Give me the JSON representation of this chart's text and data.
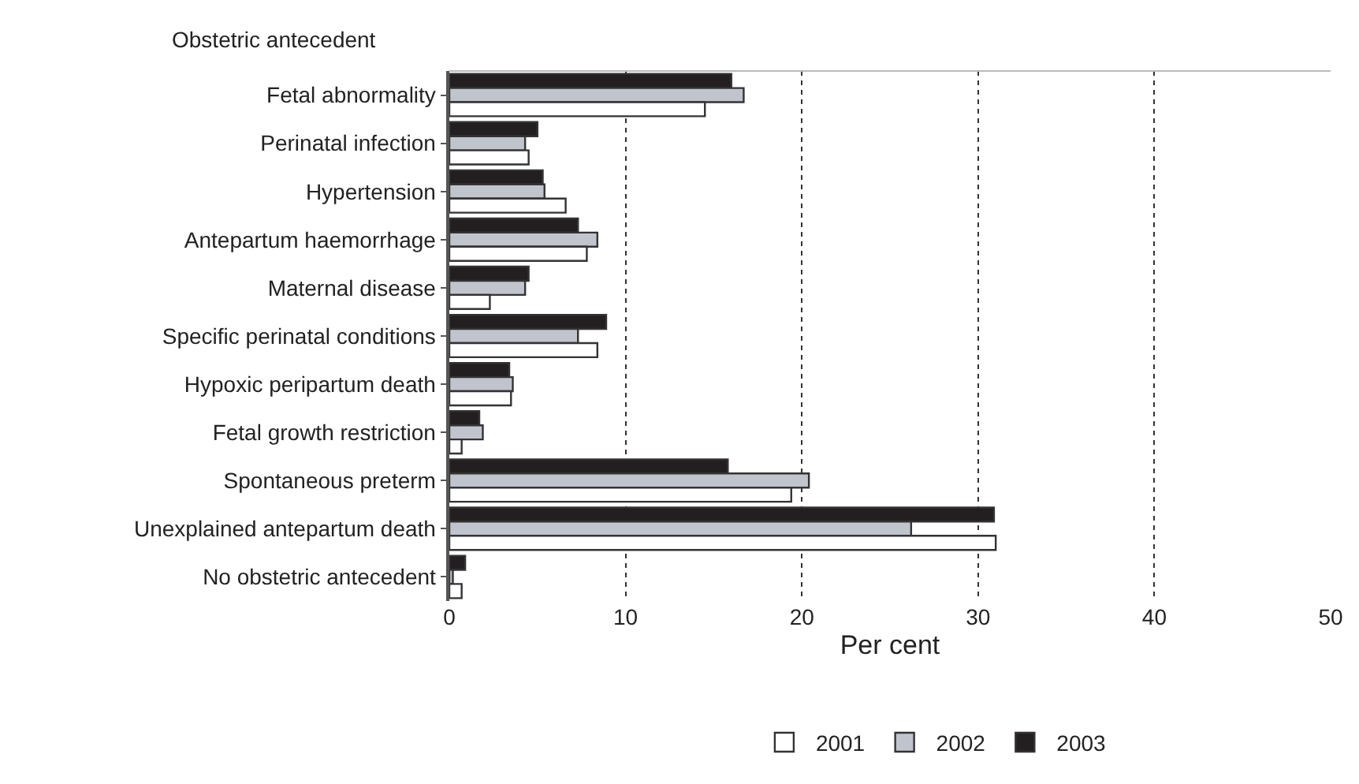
{
  "chart_data": {
    "type": "bar",
    "orientation": "horizontal",
    "ylabel": "Obstetric antecedent",
    "xlabel": "Per cent",
    "categories": [
      "Fetal abnormality",
      "Perinatal infection",
      "Hypertension",
      "Antepartum haemorrhage",
      "Maternal disease",
      "Specific perinatal conditions",
      "Hypoxic peripartum death",
      "Fetal growth restriction",
      "Spontaneous preterm",
      "Unexplained antepartum death",
      "No obstetric antecedent"
    ],
    "series": [
      {
        "name": "2001",
        "color": "#ffffff",
        "values": [
          14.5,
          4.5,
          6.6,
          7.8,
          2.3,
          8.4,
          3.5,
          0.7,
          19.4,
          31.0,
          0.7
        ]
      },
      {
        "name": "2002",
        "color": "#c0c4cc",
        "values": [
          16.7,
          4.3,
          5.4,
          8.4,
          4.3,
          7.3,
          3.6,
          1.9,
          20.4,
          26.2,
          0.2
        ]
      },
      {
        "name": "2003",
        "color": "#231f20",
        "values": [
          16.0,
          5.0,
          5.3,
          7.3,
          4.5,
          8.9,
          3.4,
          1.7,
          15.8,
          30.9,
          0.9
        ]
      }
    ],
    "xlim": [
      0,
      50
    ],
    "xticks": [
      0,
      10,
      20,
      30,
      40,
      50
    ],
    "grid": "x",
    "legend": "bottom"
  }
}
